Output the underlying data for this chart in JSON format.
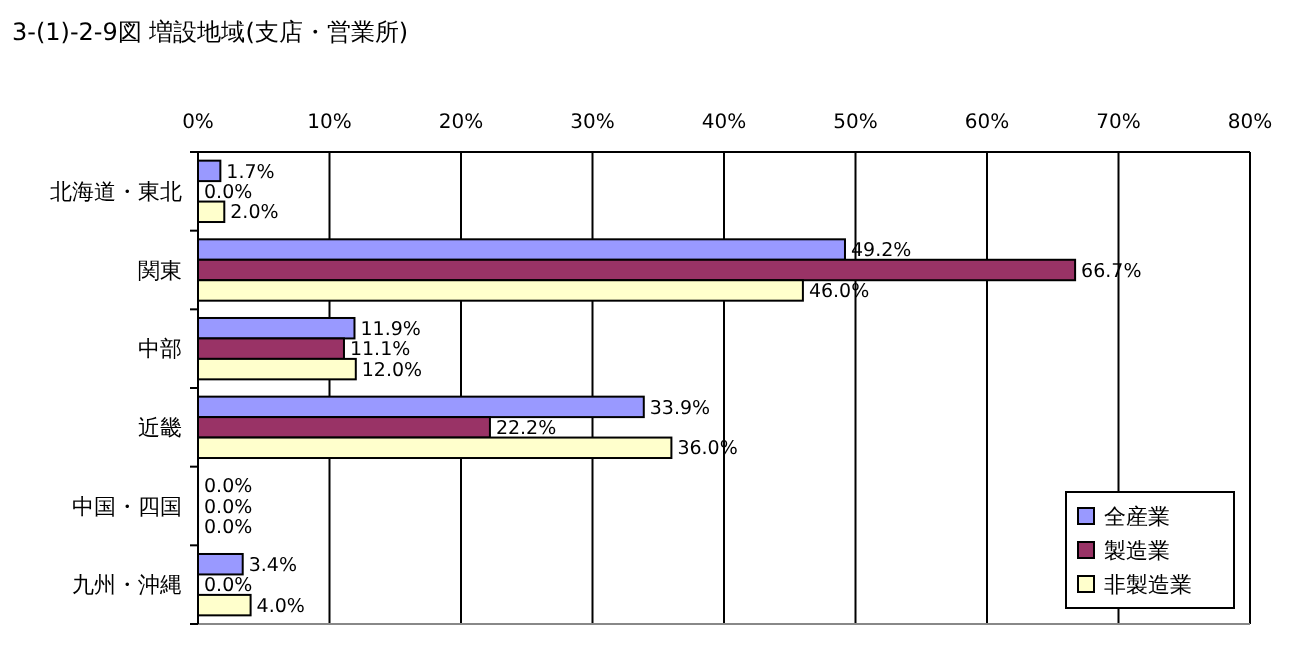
{
  "chart_data": {
    "type": "bar",
    "orientation": "horizontal",
    "title": "3-(1)-2-9図  増設地域(支店・営業所)",
    "categories": [
      "北海道・東北",
      "関東",
      "中部",
      "近畿",
      "中国・四国",
      "九州・沖縄"
    ],
    "series": [
      {
        "name": "全産業",
        "color": "#9999ff",
        "values": [
          1.7,
          49.2,
          11.9,
          33.9,
          0.0,
          3.4
        ],
        "value_labels": [
          "1.7%",
          "49.2%",
          "11.9%",
          "33.9%",
          "0.0%",
          "3.4%"
        ]
      },
      {
        "name": "製造業",
        "color": "#993366",
        "values": [
          0.0,
          66.7,
          11.1,
          22.2,
          0.0,
          0.0
        ],
        "value_labels": [
          "0.0%",
          "66.7%",
          "11.1%",
          "22.2%",
          "0.0%",
          "0.0%"
        ]
      },
      {
        "name": "非製造業",
        "color": "#ffffcc",
        "values": [
          2.0,
          46.0,
          12.0,
          36.0,
          0.0,
          4.0
        ],
        "value_labels": [
          "2.0%",
          "46.0%",
          "12.0%",
          "36.0%",
          "0.0%",
          "4.0%"
        ]
      }
    ],
    "xlim": [
      0,
      80
    ],
    "xticks": [
      {
        "value": 0,
        "label": "0%"
      },
      {
        "value": 10,
        "label": "10%"
      },
      {
        "value": 20,
        "label": "20%"
      },
      {
        "value": 30,
        "label": "30%"
      },
      {
        "value": 40,
        "label": "40%"
      },
      {
        "value": 50,
        "label": "50%"
      },
      {
        "value": 60,
        "label": "60%"
      },
      {
        "value": 70,
        "label": "70%"
      },
      {
        "value": 80,
        "label": "80%"
      }
    ],
    "grid": "x",
    "legend": "bottom right"
  }
}
